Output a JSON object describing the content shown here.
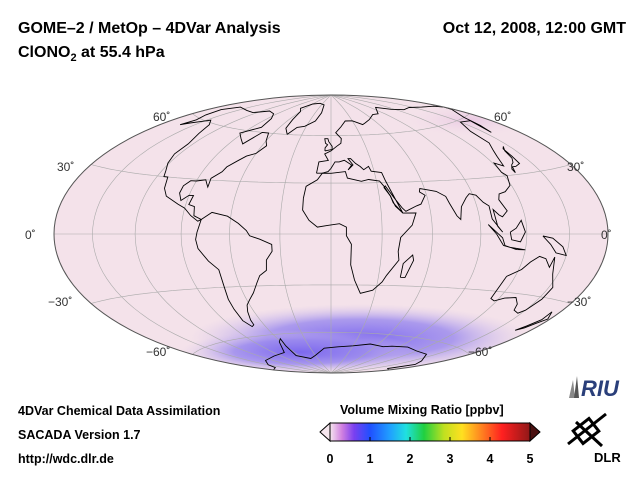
{
  "header": {
    "title": "GOME–2 / MetOp – 4DVar Analysis",
    "subtitle_main": "ClONO",
    "subtitle_sub": "2",
    "subtitle_rest": " at 55.4 hPa",
    "date": "Oct 12, 2008, 12:00 GMT"
  },
  "map": {
    "projection": "hammer-aitoff",
    "latitude_labels": {
      "n60": "60˚",
      "n30": "30˚",
      "eq": "0˚",
      "s30": "−30˚",
      "s60": "−60˚"
    },
    "background_color": "#f4e2ea",
    "low_value_color": "#8877ee"
  },
  "footer": {
    "line1": "4DVar Chemical Data Assimilation",
    "line2": "SACADA Version 1.7",
    "line3": "http://wdc.dlr.de"
  },
  "colorbar": {
    "title": "Volume Mixing Ratio [ppbv]",
    "ticks": [
      "0",
      "1",
      "2",
      "3",
      "4",
      "5"
    ]
  },
  "logos": {
    "riu": "RIU",
    "dlr": "DLR"
  }
}
